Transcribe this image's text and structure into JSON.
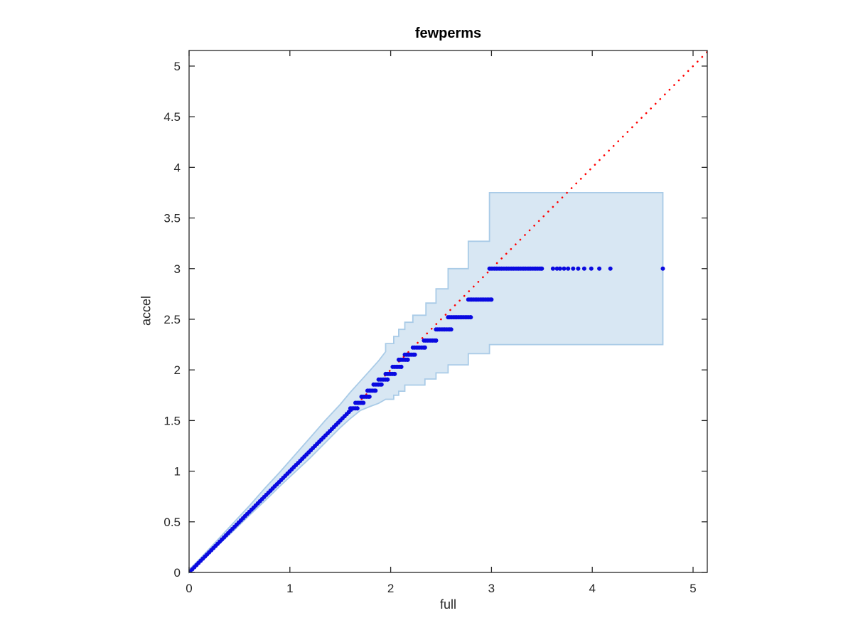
{
  "chart_data": {
    "type": "scatter",
    "title": "fewperms",
    "xlabel": "full",
    "ylabel": "accel",
    "xlim": [
      0,
      5.141
    ],
    "ylim": [
      0,
      5.154
    ],
    "xticks": [
      0,
      1,
      2,
      3,
      4,
      5
    ],
    "yticks": [
      0,
      0.5,
      1,
      1.5,
      2,
      2.5,
      3,
      3.5,
      4,
      4.5,
      5
    ],
    "grid": false,
    "legend": null,
    "colors": {
      "band_fill": "#d8e7f3",
      "band_edge": "#a9cbe7",
      "points": "#0a0ae0",
      "ref_line": "#ff0000",
      "axis": "#262626",
      "text": "#262626"
    },
    "reference_line": {
      "name": "identity-line",
      "style": "dotted",
      "from": [
        0,
        0
      ],
      "to": [
        5.141,
        5.141
      ]
    },
    "confidence_band": {
      "name": "acceptance-region",
      "upper": [
        [
          0,
          0.025
        ],
        [
          0.15,
          0.18
        ],
        [
          0.3,
          0.34
        ],
        [
          0.45,
          0.5
        ],
        [
          0.6,
          0.66
        ],
        [
          0.75,
          0.83
        ],
        [
          0.9,
          0.99
        ],
        [
          1.05,
          1.16
        ],
        [
          1.2,
          1.33
        ],
        [
          1.35,
          1.5
        ],
        [
          1.5,
          1.66
        ],
        [
          1.6,
          1.78
        ],
        [
          1.7,
          1.89
        ],
        [
          1.8,
          2.0
        ],
        [
          1.88,
          2.09
        ],
        [
          1.95,
          2.18
        ],
        [
          1.95,
          2.26
        ],
        [
          2.03,
          2.26
        ],
        [
          2.03,
          2.33
        ],
        [
          2.08,
          2.33
        ],
        [
          2.08,
          2.4
        ],
        [
          2.14,
          2.4
        ],
        [
          2.14,
          2.47
        ],
        [
          2.22,
          2.47
        ],
        [
          2.22,
          2.54
        ],
        [
          2.35,
          2.54
        ],
        [
          2.35,
          2.66
        ],
        [
          2.45,
          2.66
        ],
        [
          2.45,
          2.8
        ],
        [
          2.57,
          2.8
        ],
        [
          2.57,
          3.0
        ],
        [
          2.77,
          3.0
        ],
        [
          2.77,
          3.27
        ],
        [
          2.98,
          3.27
        ],
        [
          2.98,
          3.75
        ],
        [
          4.7,
          3.75
        ]
      ],
      "lower": [
        [
          0,
          0
        ],
        [
          0.15,
          0.135
        ],
        [
          0.3,
          0.28
        ],
        [
          0.45,
          0.42
        ],
        [
          0.6,
          0.565
        ],
        [
          0.75,
          0.705
        ],
        [
          0.9,
          0.85
        ],
        [
          1.05,
          0.99
        ],
        [
          1.2,
          1.13
        ],
        [
          1.35,
          1.28
        ],
        [
          1.5,
          1.43
        ],
        [
          1.6,
          1.52
        ],
        [
          1.7,
          1.6
        ],
        [
          1.8,
          1.64
        ],
        [
          1.88,
          1.67
        ],
        [
          1.95,
          1.71
        ],
        [
          2.03,
          1.71
        ],
        [
          2.03,
          1.75
        ],
        [
          2.08,
          1.75
        ],
        [
          2.08,
          1.79
        ],
        [
          2.14,
          1.79
        ],
        [
          2.14,
          1.85
        ],
        [
          2.34,
          1.85
        ],
        [
          2.34,
          1.91
        ],
        [
          2.45,
          1.91
        ],
        [
          2.45,
          1.97
        ],
        [
          2.57,
          1.97
        ],
        [
          2.57,
          2.05
        ],
        [
          2.77,
          2.05
        ],
        [
          2.77,
          2.16
        ],
        [
          2.98,
          2.16
        ],
        [
          2.98,
          2.25
        ],
        [
          4.7,
          2.25
        ]
      ]
    },
    "series": [
      {
        "name": "quantile-points",
        "marker": "dot",
        "diagonal_run": {
          "x_start": 0.01,
          "x_end": 1.61
        },
        "tie_runs": [
          {
            "y": 1.62,
            "x1": 1.6,
            "x2": 1.67
          },
          {
            "y": 1.675,
            "x1": 1.65,
            "x2": 1.73
          },
          {
            "y": 1.735,
            "x1": 1.71,
            "x2": 1.79
          },
          {
            "y": 1.795,
            "x1": 1.77,
            "x2": 1.85
          },
          {
            "y": 1.855,
            "x1": 1.83,
            "x2": 1.91
          },
          {
            "y": 1.905,
            "x1": 1.88,
            "x2": 1.97
          },
          {
            "y": 1.96,
            "x1": 1.95,
            "x2": 2.04
          },
          {
            "y": 2.03,
            "x1": 2.02,
            "x2": 2.105
          },
          {
            "y": 2.1,
            "x1": 2.08,
            "x2": 2.17
          },
          {
            "y": 2.15,
            "x1": 2.14,
            "x2": 2.24
          },
          {
            "y": 2.22,
            "x1": 2.22,
            "x2": 2.34
          },
          {
            "y": 2.29,
            "x1": 2.33,
            "x2": 2.45
          },
          {
            "y": 2.4,
            "x1": 2.45,
            "x2": 2.6
          },
          {
            "y": 2.52,
            "x1": 2.57,
            "x2": 2.795
          },
          {
            "y": 2.695,
            "x1": 2.77,
            "x2": 3.0
          },
          {
            "y": 3.0,
            "x1": 2.98,
            "x2": 3.5
          }
        ],
        "points": [
          [
            3.61,
            3.0
          ],
          [
            3.65,
            3.0
          ],
          [
            3.68,
            3.0
          ],
          [
            3.72,
            3.0
          ],
          [
            3.76,
            3.0
          ],
          [
            3.81,
            3.0
          ],
          [
            3.86,
            3.0
          ],
          [
            3.92,
            3.0
          ],
          [
            3.99,
            3.0
          ],
          [
            4.07,
            3.0
          ],
          [
            4.18,
            3.0
          ],
          [
            4.7,
            3.0
          ]
        ]
      }
    ]
  }
}
